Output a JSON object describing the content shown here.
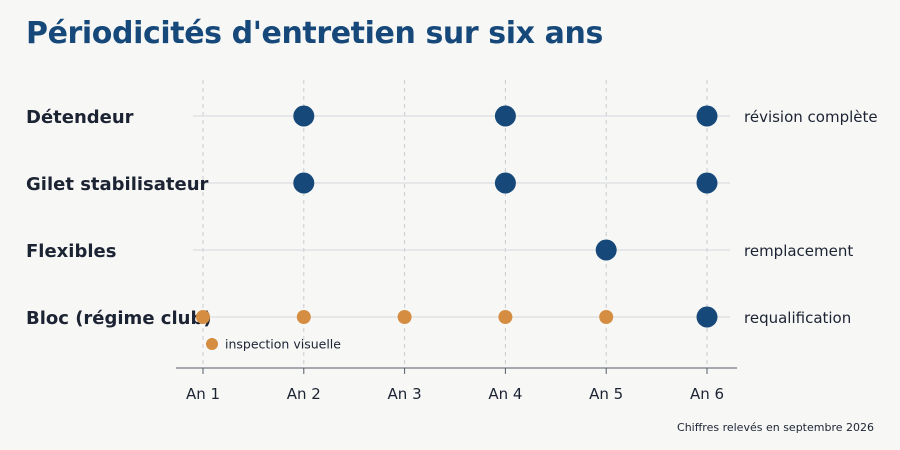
{
  "chart_data": {
    "type": "scatter",
    "title": "Périodicités d'entretien sur six ans",
    "x_ticks": [
      "An 1",
      "An 2",
      "An 3",
      "An 4",
      "An 5",
      "An 6"
    ],
    "xlim": [
      1,
      6
    ],
    "grid": true,
    "rows": [
      {
        "label": "Détendeur",
        "annotation": "révision complète",
        "points": [
          {
            "x": 2,
            "kind": "main"
          },
          {
            "x": 4,
            "kind": "main"
          },
          {
            "x": 6,
            "kind": "main"
          }
        ]
      },
      {
        "label": "Gilet stabilisateur",
        "annotation": "",
        "points": [
          {
            "x": 2,
            "kind": "main"
          },
          {
            "x": 4,
            "kind": "main"
          },
          {
            "x": 6,
            "kind": "main"
          }
        ]
      },
      {
        "label": "Flexibles",
        "annotation": "remplacement",
        "points": [
          {
            "x": 5,
            "kind": "main"
          }
        ]
      },
      {
        "label": "Bloc (régime club)",
        "annotation": "requalification",
        "points": [
          {
            "x": 1,
            "kind": "inspection"
          },
          {
            "x": 2,
            "kind": "inspection"
          },
          {
            "x": 3,
            "kind": "inspection"
          },
          {
            "x": 4,
            "kind": "inspection"
          },
          {
            "x": 5,
            "kind": "inspection"
          },
          {
            "x": 6,
            "kind": "main"
          }
        ]
      }
    ],
    "legend": [
      {
        "kind": "inspection",
        "label": "inspection visuelle"
      }
    ],
    "colors": {
      "main": "#16497a",
      "inspection": "#d58d41",
      "title": "#16497a"
    }
  },
  "footer": {
    "note": "Chiffres relevés en septembre 2026"
  }
}
